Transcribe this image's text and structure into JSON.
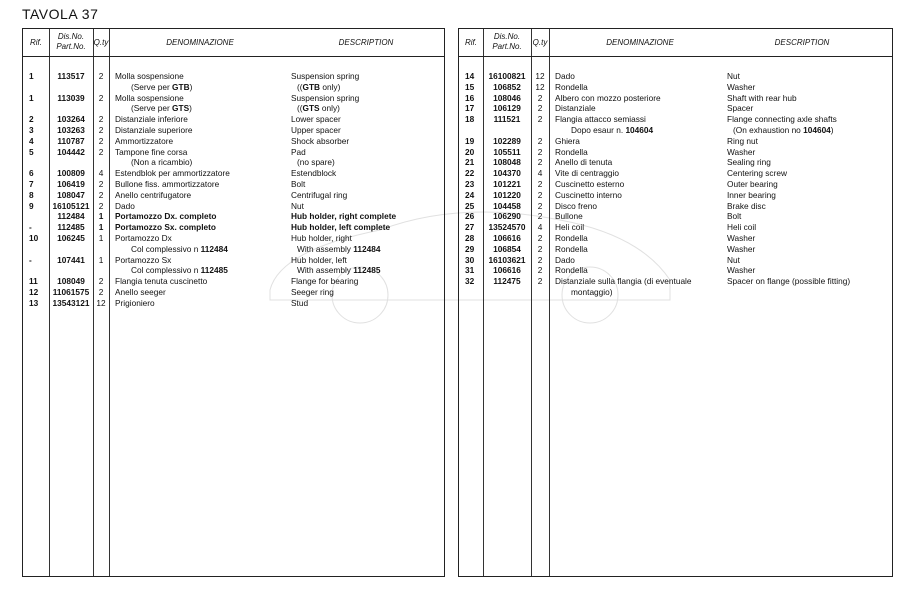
{
  "title": "TAVOLA 37",
  "headers": {
    "rif": "Rif.",
    "part1": "Dis.No.",
    "part2": "Part.No.",
    "qty": "Q.ty",
    "it": "DENOMINAZIONE",
    "en": "DESCRIPTION"
  },
  "left": [
    {
      "r": "1",
      "p": "113517",
      "q": "2",
      "it": "Molla sospensione",
      "en": "Suspension spring"
    },
    {
      "it": "(Serve per ",
      "itb": "GTB",
      "it2": ")",
      "en": "((",
      "enb": "GTB",
      "en2": " only)",
      "ind": 1
    },
    {
      "r": "1",
      "p": "113039",
      "q": "2",
      "it": "Molla sospensione",
      "en": "Suspension spring"
    },
    {
      "it": "(Serve per ",
      "itb": "GTS",
      "it2": ")",
      "en": "((",
      "enb": "GTS",
      "en2": " only)",
      "ind": 1
    },
    {
      "r": "2",
      "p": "103264",
      "q": "2",
      "it": "Distanziale inferiore",
      "en": "Lower spacer"
    },
    {
      "r": "3",
      "p": "103263",
      "q": "2",
      "it": "Distanziale superiore",
      "en": "Upper spacer"
    },
    {
      "r": "4",
      "p": "110787",
      "q": "2",
      "it": "Ammortizzatore",
      "en": "Shock absorber"
    },
    {
      "r": "5",
      "p": "104442",
      "q": "2",
      "it": "Tampone fine corsa",
      "en": "Pad"
    },
    {
      "it": "(Non a ricambio)",
      "en": "(no spare)",
      "ind": 1
    },
    {
      "r": "6",
      "p": "100809",
      "q": "4",
      "it": "Estendblok per ammortizzatore",
      "en": "Estendblock"
    },
    {
      "r": "7",
      "p": "106419",
      "q": "2",
      "it": "Bullone fiss. ammortizzatore",
      "en": "Bolt"
    },
    {
      "r": "8",
      "p": "108047",
      "q": "2",
      "it": "Anello centrifugatore",
      "en": "Centrifugal ring"
    },
    {
      "r": "9",
      "p": "16105121",
      "q": "2",
      "it": "Dado",
      "en": "Nut"
    },
    {
      "r": "",
      "p": "112484",
      "q": "1",
      "it": "Portamozzo Dx.  completo",
      "en": "Hub holder, right complete",
      "bold": true
    },
    {
      "r": "-",
      "p": "112485",
      "q": "1",
      "it": "Portamozzo Sx. completo",
      "en": "Hub holder, left  complete",
      "bold": true
    },
    {
      "r": "10",
      "p": "106245",
      "q": "1",
      "it": "Portamozzo Dx",
      "en": "Hub holder, right"
    },
    {
      "it": "Col complessivo n  ",
      "itb": "112484",
      "en": "With assembly ",
      "enb": "112484",
      "ind": 1
    },
    {
      "r": "-",
      "p": "107441",
      "q": "1",
      "it": "Portamozzo Sx",
      "en": "Hub holder, left"
    },
    {
      "it": "Col complessivo n  ",
      "itb": "112485",
      "en": "With assembly ",
      "enb": "112485",
      "ind": 1
    },
    {
      "r": "11",
      "p": "108049",
      "q": "2",
      "it": "Flangia tenuta cuscinetto",
      "en": "Flange for bearing"
    },
    {
      "r": "12",
      "p": "11061575",
      "q": "2",
      "it": "Anello seeger",
      "en": "Seeger ring"
    },
    {
      "r": "13",
      "p": "13543121",
      "q": "12",
      "it": "Prigioniero",
      "en": "Stud"
    }
  ],
  "right": [
    {
      "r": "14",
      "p": "16100821",
      "q": "12",
      "it": "Dado",
      "en": "Nut"
    },
    {
      "r": "15",
      "p": "106852",
      "q": "12",
      "it": "Rondella",
      "en": "Washer"
    },
    {
      "r": "16",
      "p": "108046",
      "q": "2",
      "it": "Albero con mozzo posteriore",
      "en": "Shaft with rear hub"
    },
    {
      "r": "17",
      "p": "106129",
      "q": "2",
      "it": "Distanziale",
      "en": "Spacer"
    },
    {
      "r": "18",
      "p": "111521",
      "q": "2",
      "it": "Flangia attacco semiassi",
      "en": "Flange connecting axle shafts"
    },
    {
      "it": "Dopo esaur  n. ",
      "itb": "104604",
      "en": "(On exhaustion no  ",
      "enb": "104604",
      "en2": ")",
      "ind": 1
    },
    {
      "r": "19",
      "p": "102289",
      "q": "2",
      "it": "Ghiera",
      "en": "Ring nut"
    },
    {
      "r": "20",
      "p": "105511",
      "q": "2",
      "it": "Rondella",
      "en": "Washer"
    },
    {
      "r": "21",
      "p": "108048",
      "q": "2",
      "it": "Anello di tenuta",
      "en": "Sealing ring"
    },
    {
      "r": "22",
      "p": "104370",
      "q": "4",
      "it": "Vite di centraggio",
      "en": "Centering screw"
    },
    {
      "r": "23",
      "p": "101221",
      "q": "2",
      "it": "Cuscinetto esterno",
      "en": "Outer bearing"
    },
    {
      "r": "24",
      "p": "101220",
      "q": "2",
      "it": "Cuscinetto interno",
      "en": "Inner bearing"
    },
    {
      "r": "25",
      "p": "104458",
      "q": "2",
      "it": "Disco freno",
      "en": "Brake disc"
    },
    {
      "r": "26",
      "p": "106290",
      "q": "2",
      "it": "Bullone",
      "en": "Bolt"
    },
    {
      "r": "27",
      "p": "13524570",
      "q": "4",
      "it": "Heli   coil",
      "en": "Heli   coil"
    },
    {
      "r": "28",
      "p": "106616",
      "q": "2",
      "it": "Rondella",
      "en": "Washer"
    },
    {
      "r": "29",
      "p": "106854",
      "q": "2",
      "it": "Rondella",
      "en": "Washer"
    },
    {
      "r": "30",
      "p": "16103621",
      "q": "2",
      "it": "Dado",
      "en": "Nut"
    },
    {
      "r": "31",
      "p": "106616",
      "q": "2",
      "it": "Rondella",
      "en": "Washer"
    },
    {
      "r": "32",
      "p": "112475",
      "q": "2",
      "it": "Distanziale sulla flangia (di eventuale",
      "en": "Spacer on flange (possible fitting)"
    },
    {
      "it": "montaggio)",
      "en": "",
      "ind": 1
    }
  ]
}
